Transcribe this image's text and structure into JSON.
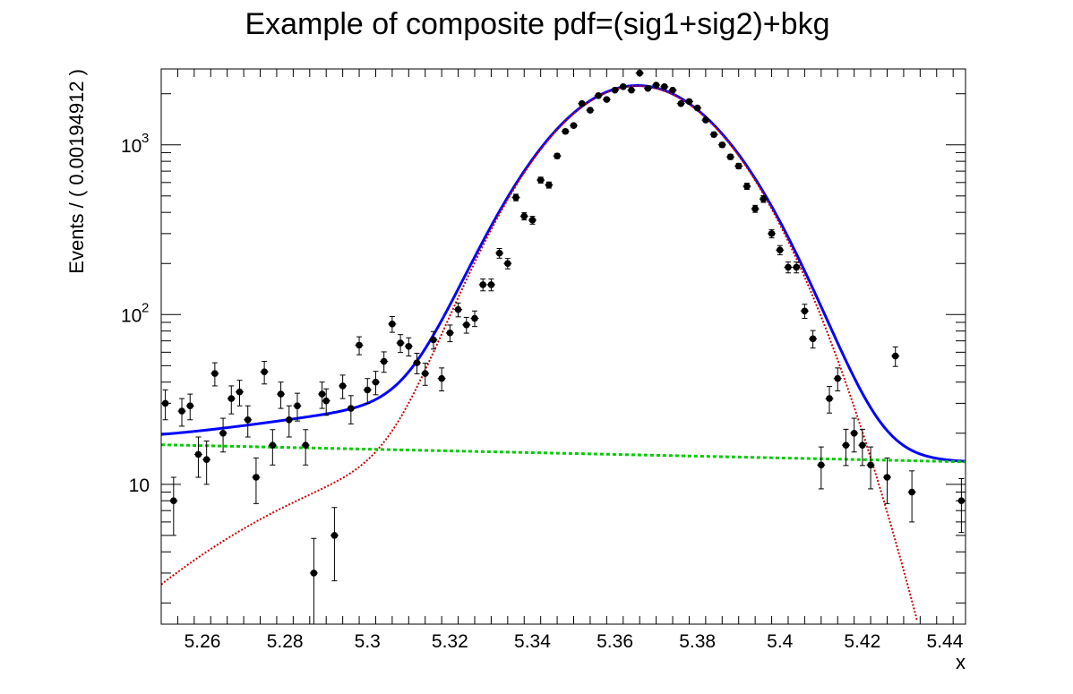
{
  "chart_data": {
    "type": "scatter",
    "title": "Example of composite pdf=(sig1+sig2)+bkg",
    "xlabel": "x",
    "ylabel": "Events / ( 0.00194912 )",
    "xlim": [
      5.25,
      5.445
    ],
    "ylim": [
      1.5,
      2800
    ],
    "yscale": "log",
    "x_ticks": [
      {
        "v": 5.26,
        "label": "5.26"
      },
      {
        "v": 5.28,
        "label": "5.28"
      },
      {
        "v": 5.3,
        "label": "5.3"
      },
      {
        "v": 5.32,
        "label": "5.32"
      },
      {
        "v": 5.34,
        "label": "5.34"
      },
      {
        "v": 5.36,
        "label": "5.36"
      },
      {
        "v": 5.38,
        "label": "5.38"
      },
      {
        "v": 5.4,
        "label": "5.4"
      },
      {
        "v": 5.42,
        "label": "5.42"
      },
      {
        "v": 5.44,
        "label": "5.44"
      }
    ],
    "y_ticks": [
      {
        "v": 10,
        "base": "10",
        "exp": ""
      },
      {
        "v": 100,
        "base": "10",
        "exp": "2"
      },
      {
        "v": 1000,
        "base": "10",
        "exp": "3"
      }
    ],
    "grid": false,
    "legend": "none",
    "series": [
      {
        "kind": "points",
        "color": "#000000",
        "x": [
          5.251,
          5.253,
          5.255,
          5.257,
          5.259,
          5.261,
          5.263,
          5.265,
          5.267,
          5.269,
          5.271,
          5.273,
          5.275,
          5.277,
          5.279,
          5.281,
          5.283,
          5.285,
          5.287,
          5.289,
          5.29,
          5.292,
          5.294,
          5.296,
          5.298,
          5.3,
          5.302,
          5.304,
          5.306,
          5.308,
          5.31,
          5.312,
          5.314,
          5.316,
          5.318,
          5.32,
          5.322,
          5.324,
          5.326,
          5.328,
          5.33,
          5.332,
          5.334,
          5.336,
          5.338,
          5.34,
          5.342,
          5.344,
          5.346,
          5.348,
          5.35,
          5.352,
          5.354,
          5.356,
          5.358,
          5.36,
          5.362,
          5.364,
          5.366,
          5.368,
          5.37,
          5.372,
          5.374,
          5.376,
          5.378,
          5.38,
          5.382,
          5.384,
          5.386,
          5.388,
          5.39,
          5.392,
          5.394,
          5.396,
          5.398,
          5.4,
          5.402,
          5.404,
          5.406,
          5.408,
          5.41,
          5.412,
          5.414,
          5.416,
          5.418,
          5.42,
          5.422,
          5.426,
          5.428,
          5.432,
          5.444
        ],
        "y": [
          30,
          8,
          27,
          29,
          15,
          14,
          45,
          20,
          32,
          35,
          24,
          11,
          46,
          17,
          34,
          24,
          29,
          17,
          3,
          34,
          31,
          5,
          38,
          28,
          66,
          36,
          40,
          53,
          88,
          68,
          65,
          52,
          45,
          71,
          42,
          78,
          107,
          87,
          95,
          150,
          150,
          230,
          200,
          490,
          380,
          360,
          620,
          580,
          860,
          1200,
          1300,
          1750,
          1600,
          1950,
          1850,
          2100,
          2200,
          2100,
          2650,
          2150,
          2250,
          2200,
          2100,
          1750,
          1800,
          1650,
          1400,
          1150,
          1000,
          850,
          750,
          570,
          420,
          480,
          300,
          240,
          190,
          190,
          105,
          72,
          13,
          32,
          42,
          17,
          20,
          17,
          13,
          11,
          57,
          9,
          8
        ],
        "err": [
          6,
          3,
          5,
          5,
          4,
          4,
          7,
          4.5,
          6,
          6,
          5,
          3.3,
          7,
          4,
          6,
          5,
          5.4,
          4,
          1.8,
          6,
          5.5,
          2.3,
          6,
          5.3,
          8,
          6,
          6.3,
          7.3,
          9.4,
          8.2,
          8,
          7.2,
          6.7,
          8.4,
          6.5,
          8.8,
          10,
          9.3,
          10,
          12,
          12,
          15,
          14,
          22,
          19,
          19,
          25,
          24,
          29,
          35,
          36,
          42,
          40,
          44,
          43,
          46,
          47,
          46,
          51,
          46,
          47,
          47,
          46,
          42,
          42,
          41,
          37,
          34,
          32,
          29,
          27,
          24,
          20,
          22,
          17,
          15,
          14,
          14,
          10,
          8.5,
          3.6,
          5.7,
          6.5,
          4.1,
          4.5,
          4.1,
          3.6,
          3.3,
          7.5,
          3,
          2.8
        ]
      },
      {
        "kind": "curve",
        "name": "",
        "color": "#0000ff",
        "style": "solid"
      },
      {
        "kind": "curve",
        "name": "",
        "color": "#cc0000",
        "style": "dotted"
      },
      {
        "kind": "curve",
        "name": "",
        "color": "#00cc00",
        "style": "dashed"
      }
    ]
  }
}
